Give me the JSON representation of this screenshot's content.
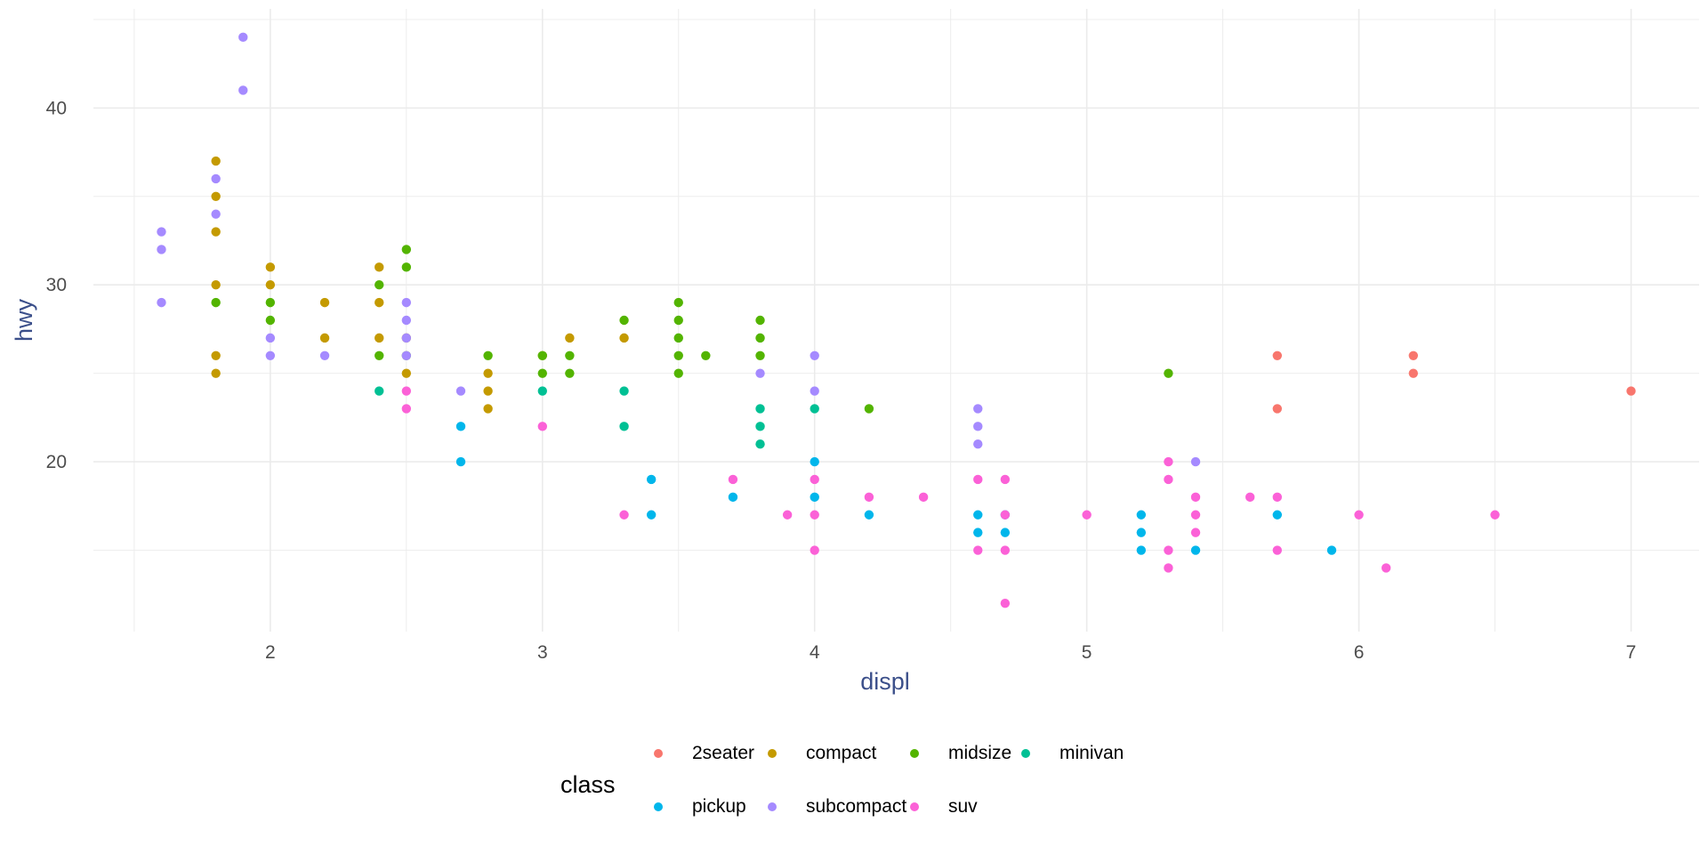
{
  "chart_data": {
    "type": "scatter",
    "xlabel": "displ",
    "ylabel": "hwy",
    "xlim": [
      1.35,
      7.25
    ],
    "ylim": [
      10.4,
      45.6
    ],
    "x_ticks": [
      2,
      3,
      4,
      5,
      6,
      7
    ],
    "y_ticks": [
      20,
      30,
      40
    ],
    "grid": true,
    "legend_title": "class",
    "legend_position": "bottom",
    "series": [
      {
        "name": "2seater",
        "color": "#F8766D",
        "points": [
          [
            5.7,
            26
          ],
          [
            5.7,
            23
          ],
          [
            6.2,
            26
          ],
          [
            6.2,
            25
          ],
          [
            7.0,
            24
          ]
        ]
      },
      {
        "name": "compact",
        "color": "#C49A00",
        "points": [
          [
            1.8,
            37
          ],
          [
            1.8,
            35
          ],
          [
            1.8,
            33
          ],
          [
            1.8,
            30
          ],
          [
            1.8,
            26
          ],
          [
            1.8,
            25
          ],
          [
            2.0,
            31
          ],
          [
            2.0,
            30
          ],
          [
            2.2,
            29
          ],
          [
            2.2,
            27
          ],
          [
            2.4,
            31
          ],
          [
            2.4,
            29
          ],
          [
            2.4,
            27
          ],
          [
            2.5,
            27
          ],
          [
            2.5,
            25
          ],
          [
            2.8,
            25
          ],
          [
            2.8,
            24
          ],
          [
            2.8,
            23
          ],
          [
            3.0,
            26
          ],
          [
            3.1,
            27
          ],
          [
            3.3,
            27
          ]
        ]
      },
      {
        "name": "midsize",
        "color": "#53B400",
        "points": [
          [
            1.8,
            29
          ],
          [
            2.0,
            29
          ],
          [
            2.0,
            28
          ],
          [
            2.4,
            30
          ],
          [
            2.4,
            26
          ],
          [
            2.5,
            32
          ],
          [
            2.5,
            31
          ],
          [
            2.5,
            26
          ],
          [
            2.8,
            26
          ],
          [
            3.0,
            26
          ],
          [
            3.0,
            25
          ],
          [
            3.1,
            26
          ],
          [
            3.1,
            25
          ],
          [
            3.3,
            28
          ],
          [
            3.5,
            29
          ],
          [
            3.5,
            28
          ],
          [
            3.5,
            27
          ],
          [
            3.5,
            26
          ],
          [
            3.5,
            25
          ],
          [
            3.6,
            26
          ],
          [
            3.8,
            28
          ],
          [
            3.8,
            27
          ],
          [
            3.8,
            26
          ],
          [
            4.2,
            23
          ],
          [
            5.3,
            25
          ]
        ]
      },
      {
        "name": "minivan",
        "color": "#00C094",
        "points": [
          [
            2.4,
            24
          ],
          [
            3.0,
            24
          ],
          [
            3.3,
            24
          ],
          [
            3.3,
            22
          ],
          [
            3.8,
            23
          ],
          [
            3.8,
            22
          ],
          [
            3.8,
            21
          ],
          [
            4.0,
            23
          ]
        ]
      },
      {
        "name": "pickup",
        "color": "#00B6EB",
        "points": [
          [
            2.7,
            22
          ],
          [
            2.7,
            20
          ],
          [
            3.4,
            19
          ],
          [
            3.4,
            17
          ],
          [
            3.7,
            18
          ],
          [
            4.0,
            20
          ],
          [
            4.0,
            18
          ],
          [
            4.2,
            17
          ],
          [
            4.6,
            17
          ],
          [
            4.6,
            16
          ],
          [
            4.7,
            17
          ],
          [
            4.7,
            16
          ],
          [
            5.2,
            17
          ],
          [
            5.2,
            16
          ],
          [
            5.2,
            15
          ],
          [
            5.4,
            15
          ],
          [
            5.7,
            17
          ],
          [
            5.9,
            15
          ]
        ]
      },
      {
        "name": "subcompact",
        "color": "#A58AFF",
        "points": [
          [
            1.6,
            33
          ],
          [
            1.6,
            32
          ],
          [
            1.6,
            29
          ],
          [
            1.9,
            44
          ],
          [
            1.9,
            41
          ],
          [
            1.8,
            36
          ],
          [
            1.8,
            34
          ],
          [
            2.0,
            27
          ],
          [
            2.0,
            26
          ],
          [
            2.2,
            26
          ],
          [
            2.5,
            29
          ],
          [
            2.5,
            28
          ],
          [
            2.5,
            27
          ],
          [
            2.5,
            26
          ],
          [
            2.7,
            24
          ],
          [
            3.8,
            25
          ],
          [
            4.0,
            26
          ],
          [
            4.0,
            24
          ],
          [
            4.6,
            23
          ],
          [
            4.6,
            22
          ],
          [
            4.6,
            21
          ],
          [
            5.4,
            20
          ]
        ]
      },
      {
        "name": "suv",
        "color": "#FB61D7",
        "points": [
          [
            2.5,
            24
          ],
          [
            2.5,
            23
          ],
          [
            3.0,
            22
          ],
          [
            3.3,
            17
          ],
          [
            3.7,
            19
          ],
          [
            3.9,
            17
          ],
          [
            4.0,
            19
          ],
          [
            4.0,
            17
          ],
          [
            4.0,
            15
          ],
          [
            4.2,
            18
          ],
          [
            4.4,
            18
          ],
          [
            4.6,
            19
          ],
          [
            4.6,
            15
          ],
          [
            4.7,
            19
          ],
          [
            4.7,
            17
          ],
          [
            4.7,
            15
          ],
          [
            4.7,
            12
          ],
          [
            5.0,
            17
          ],
          [
            5.3,
            20
          ],
          [
            5.3,
            19
          ],
          [
            5.3,
            15
          ],
          [
            5.3,
            14
          ],
          [
            5.4,
            18
          ],
          [
            5.4,
            17
          ],
          [
            5.4,
            16
          ],
          [
            5.6,
            18
          ],
          [
            5.7,
            18
          ],
          [
            5.7,
            15
          ],
          [
            6.0,
            17
          ],
          [
            6.1,
            14
          ],
          [
            6.5,
            17
          ]
        ]
      }
    ]
  }
}
